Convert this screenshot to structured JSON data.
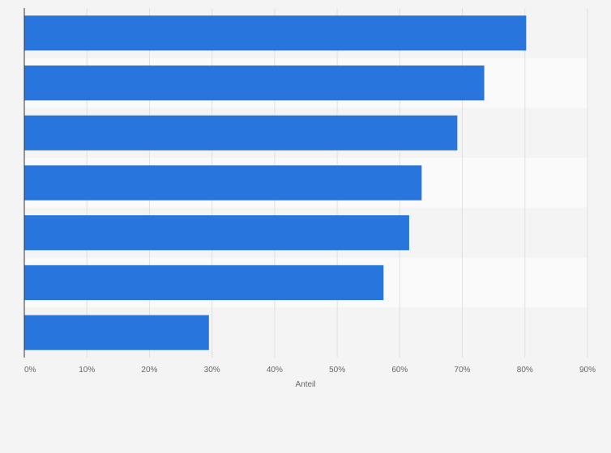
{
  "chart_data": {
    "type": "bar",
    "orientation": "horizontal",
    "categories": [
      "",
      "",
      "",
      "",
      "",
      "",
      ""
    ],
    "values": [
      80.2,
      73.5,
      69.2,
      63.5,
      61.5,
      57.4,
      29.5
    ],
    "xlabel": "Anteil",
    "ylabel": "",
    "xlim": [
      0,
      90
    ],
    "xticks": [
      "0%",
      "10%",
      "20%",
      "30%",
      "40%",
      "50%",
      "60%",
      "70%",
      "80%",
      "90%"
    ],
    "grid": true,
    "legend": "none",
    "bar_color": "#2876dd",
    "band_colors": [
      "#f4f4f4",
      "#fafafa"
    ]
  }
}
